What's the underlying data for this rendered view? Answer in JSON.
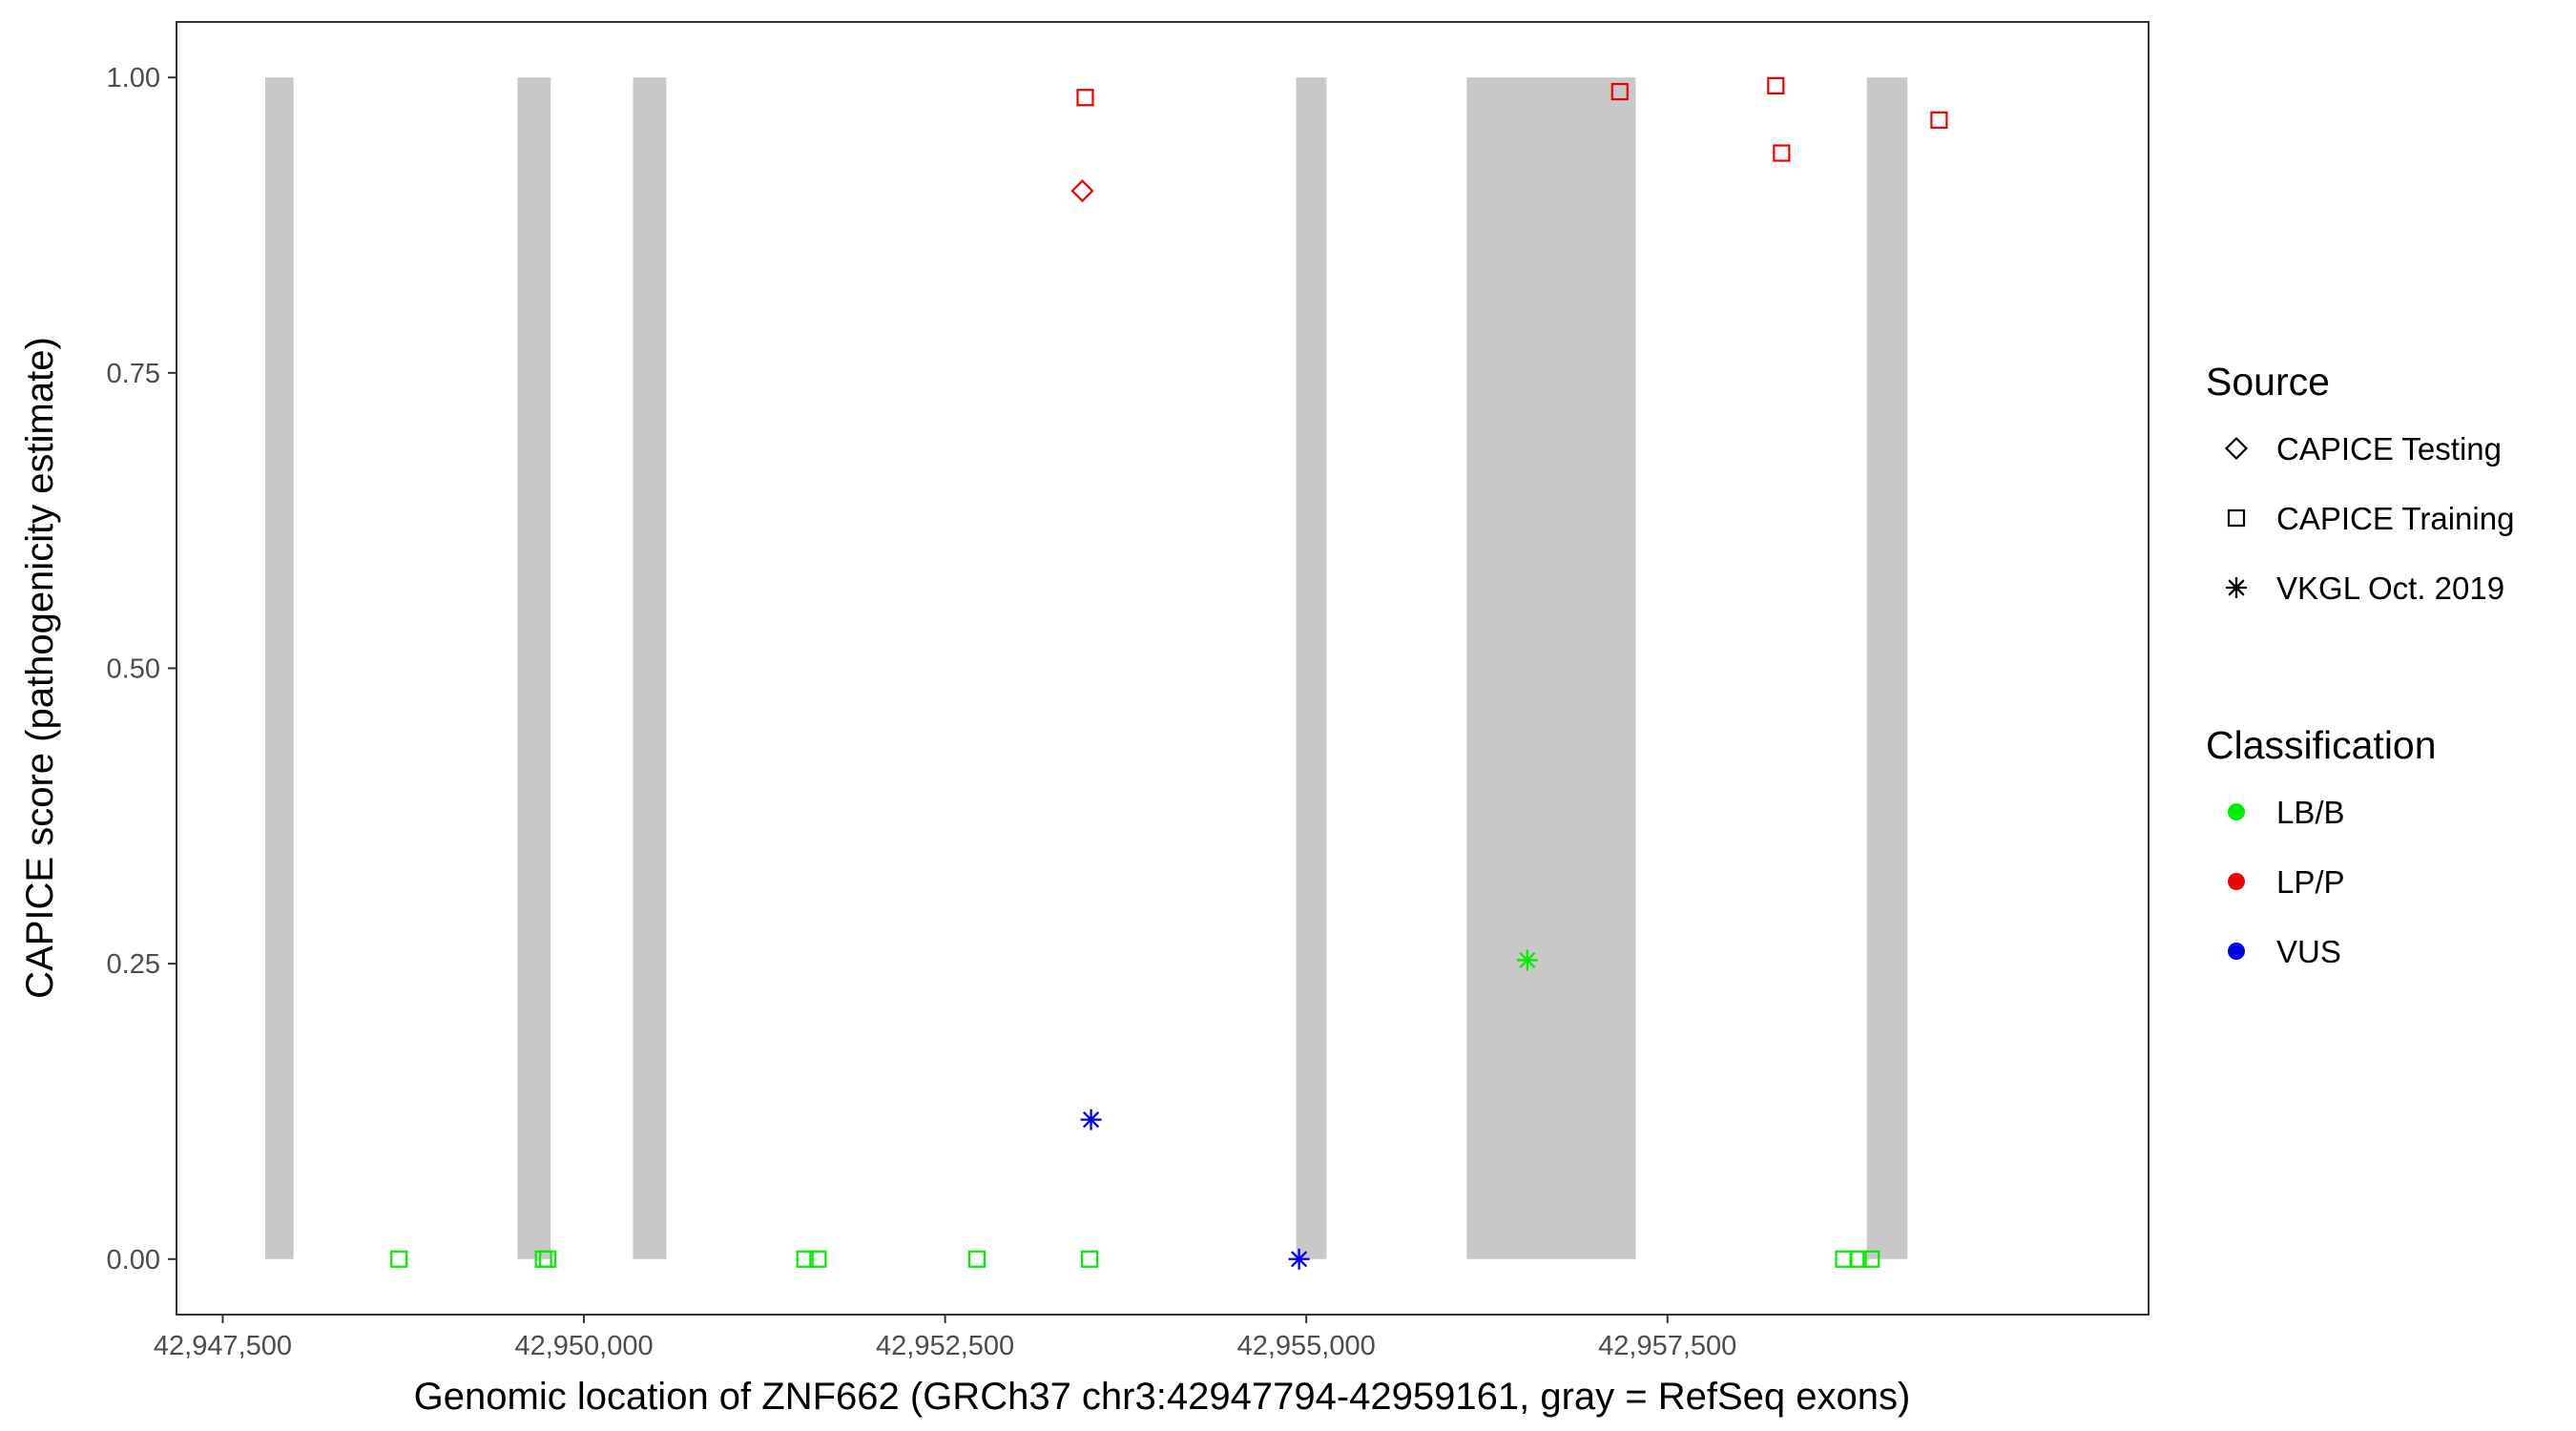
{
  "chart_data": {
    "type": "scatter",
    "title": "",
    "xlabel": "Genomic location of ZNF662 (GRCh37 chr3:42947794-42959161, gray = RefSeq exons)",
    "ylabel": "CAPICE score (pathogenicity estimate)",
    "xlim": [
      42947180,
      42960830
    ],
    "ylim": [
      -0.047,
      1.047
    ],
    "x_ticks": [
      42947500,
      42950000,
      42952500,
      42955000,
      42957500
    ],
    "x_tick_labels": [
      "42,947,500",
      "42,950,000",
      "42,952,500",
      "42,955,000",
      "42,957,500"
    ],
    "y_ticks": [
      0,
      0.25,
      0.5,
      0.75,
      1.0
    ],
    "y_tick_labels": [
      "0.00",
      "0.25",
      "0.50",
      "0.75",
      "1.00"
    ],
    "grid": false,
    "exon_color": "#c8c8c8",
    "exons": [
      {
        "start": 42947794,
        "end": 42947990
      },
      {
        "start": 42949540,
        "end": 42949770
      },
      {
        "start": 42950340,
        "end": 42950570
      },
      {
        "start": 42954930,
        "end": 42955140
      },
      {
        "start": 42956110,
        "end": 42957280
      },
      {
        "start": 42958880,
        "end": 42959161
      }
    ],
    "legends": [
      {
        "title": "Source",
        "items": [
          {
            "label": "CAPICE Testing",
            "shape": "diamond"
          },
          {
            "label": "CAPICE Training",
            "shape": "square"
          },
          {
            "label": "VKGL Oct. 2019",
            "shape": "asterisk"
          }
        ]
      },
      {
        "title": "Classification",
        "items": [
          {
            "label": "LB/B",
            "color": "#00ee00"
          },
          {
            "label": "LP/P",
            "color": "#ee0000"
          },
          {
            "label": "VUS",
            "color": "#0000ee"
          }
        ]
      }
    ],
    "legend_position": "right",
    "points": [
      {
        "x": 42948720,
        "y": 0.0,
        "source": "CAPICE Training",
        "class": "LB/B"
      },
      {
        "x": 42949720,
        "y": 0.0,
        "source": "CAPICE Training",
        "class": "LB/B"
      },
      {
        "x": 42949750,
        "y": 0.0,
        "source": "CAPICE Training",
        "class": "LB/B"
      },
      {
        "x": 42951530,
        "y": 0.0,
        "source": "CAPICE Training",
        "class": "LB/B"
      },
      {
        "x": 42951620,
        "y": 0.0,
        "source": "CAPICE Training",
        "class": "LB/B"
      },
      {
        "x": 42952720,
        "y": 0.0,
        "source": "CAPICE Training",
        "class": "LB/B"
      },
      {
        "x": 42953500,
        "y": 0.0,
        "source": "CAPICE Training",
        "class": "LB/B"
      },
      {
        "x": 42958720,
        "y": 0.0,
        "source": "CAPICE Training",
        "class": "LB/B"
      },
      {
        "x": 42958820,
        "y": 0.0,
        "source": "CAPICE Training",
        "class": "LB/B"
      },
      {
        "x": 42958910,
        "y": 0.0,
        "source": "CAPICE Training",
        "class": "LB/B"
      },
      {
        "x": 42953470,
        "y": 0.983,
        "source": "CAPICE Training",
        "class": "LP/P"
      },
      {
        "x": 42957170,
        "y": 0.988,
        "source": "CAPICE Training",
        "class": "LP/P"
      },
      {
        "x": 42958250,
        "y": 0.993,
        "source": "CAPICE Training",
        "class": "LP/P"
      },
      {
        "x": 42958290,
        "y": 0.936,
        "source": "CAPICE Training",
        "class": "LP/P"
      },
      {
        "x": 42959380,
        "y": 0.964,
        "source": "CAPICE Training",
        "class": "LP/P"
      },
      {
        "x": 42953450,
        "y": 0.904,
        "source": "CAPICE Testing",
        "class": "LP/P"
      },
      {
        "x": 42956530,
        "y": 0.253,
        "source": "VKGL Oct. 2019",
        "class": "LB/B"
      },
      {
        "x": 42953510,
        "y": 0.118,
        "source": "VKGL Oct. 2019",
        "class": "VUS"
      },
      {
        "x": 42954950,
        "y": 0.0,
        "source": "VKGL Oct. 2019",
        "class": "VUS"
      }
    ]
  }
}
